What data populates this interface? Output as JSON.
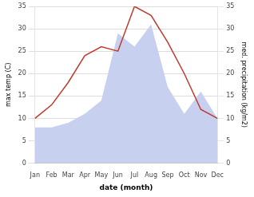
{
  "chart_data": {
    "type": "line",
    "categories": [
      "Jan",
      "Feb",
      "Mar",
      "Apr",
      "May",
      "Jun",
      "Jul",
      "Aug",
      "Sep",
      "Oct",
      "Nov",
      "Dec"
    ],
    "xlabel": "date (month)",
    "ylabel": "max temp (C)",
    "y2label": "med. precipitation (kg/m2)",
    "series": [
      {
        "type": "area",
        "color": "#c8d0f0",
        "axis": "y2",
        "values": [
          8,
          8,
          9,
          11,
          14,
          29,
          26,
          31,
          17,
          11,
          16,
          10
        ]
      },
      {
        "type": "line",
        "color": "#c0392b",
        "values": [
          10,
          13,
          18,
          24,
          26,
          25,
          35,
          33,
          27,
          20,
          12,
          10
        ]
      }
    ],
    "ylim": [
      0,
      35
    ],
    "yticks": [
      0,
      5,
      10,
      15,
      20,
      25,
      30,
      35
    ],
    "y2lim": [
      0,
      35
    ],
    "y2ticks": [
      0,
      5,
      10,
      15,
      20,
      25,
      30,
      35
    ],
    "grid": true
  }
}
